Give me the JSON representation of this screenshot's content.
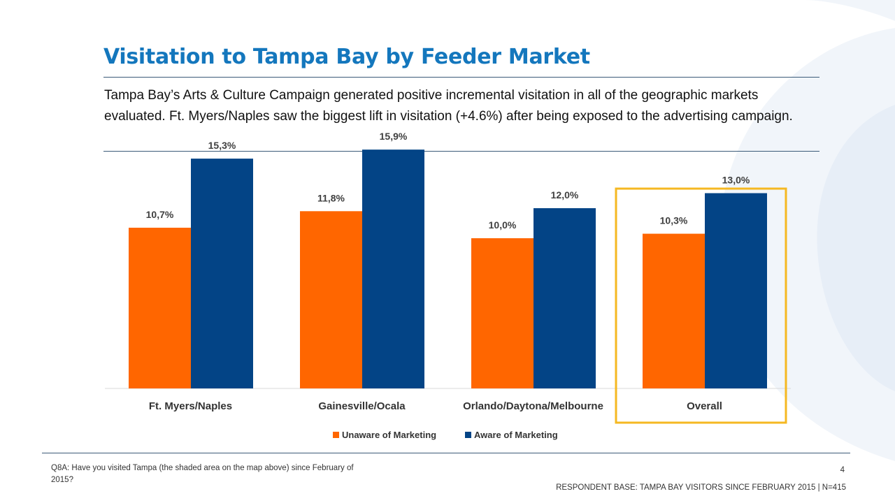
{
  "page": {
    "title": "Visitation to Tampa Bay by Feeder Market",
    "summary": "Tampa Bay’s Arts & Culture Campaign generated positive incremental visitation in all of the geographic markets evaluated.  Ft. Myers/Naples saw the biggest lift in visitation (+4.6%) after being exposed to the advertising campaign.",
    "footnote": "Q8A: Have you visited Tampa (the shaded area on the map above) since February of 2015?",
    "page_number": "4",
    "respondent_base": "RESPONDENT BASE: TAMPA BAY VISITORS SINCE FEBRUARY 2015  |  N=415"
  },
  "colors": {
    "title": "#1477bd",
    "unaware": "#ff6600",
    "aware": "#034486",
    "highlight_box": "#f5b822",
    "decor_swirl": "#eef3f9"
  },
  "chart_data": {
    "type": "bar",
    "categories": [
      "Ft. Myers/Naples",
      "Gainesville/Ocala",
      "Orlando/Daytona/Melbourne",
      "Overall"
    ],
    "series": [
      {
        "name": "Unaware of Marketing",
        "values": [
          10.7,
          11.8,
          10.0,
          10.3
        ],
        "labels": [
          "10,7%",
          "11,8%",
          "10,0%",
          "10,3%"
        ],
        "color": "#ff6600"
      },
      {
        "name": "Aware of Marketing",
        "values": [
          15.3,
          15.9,
          12.0,
          13.0
        ],
        "labels": [
          "15,3%",
          "15,9%",
          "12,0%",
          "13,0%"
        ],
        "color": "#034486"
      }
    ],
    "ylim": [
      0,
      16
    ],
    "grid": false,
    "legend_position": "bottom",
    "highlighted_category": "Overall"
  }
}
